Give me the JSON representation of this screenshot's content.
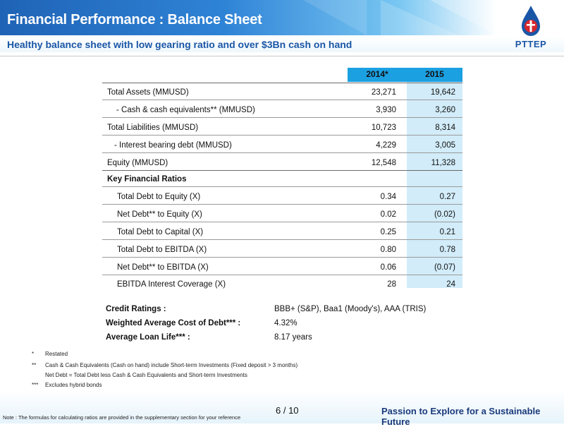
{
  "header": {
    "title": "Financial Performance : Balance Sheet",
    "subtitle": "Healthy balance sheet with low gearing ratio and over $3Bn cash on hand"
  },
  "logo": {
    "text": "PTTEP",
    "icon": "pttep-drop-logo"
  },
  "table": {
    "columns": [
      "2014*",
      "2015"
    ],
    "rows": [
      {
        "label": "Total Assets (MMUSD)",
        "v2014": "23,271",
        "v2015": "19,642"
      },
      {
        "label": "- Cash & cash equivalents** (MMUSD)",
        "v2014": "3,930",
        "v2015": "3,260"
      },
      {
        "label": "Total Liabilities (MMUSD)",
        "v2014": "10,723",
        "v2015": "8,314"
      },
      {
        "label": "-  Interest bearing debt (MMUSD)",
        "v2014": "4,229",
        "v2015": "3,005"
      },
      {
        "label": "Equity (MMUSD)",
        "v2014": "12,548",
        "v2015": "11,328"
      }
    ],
    "section_label": "Key Financial Ratios",
    "ratios": [
      {
        "label": "Total Debt to Equity (X)",
        "v2014": "0.34",
        "v2015": "0.27"
      },
      {
        "label": "Net Debt** to Equity (X)",
        "v2014": "0.02",
        "v2015": "(0.02)"
      },
      {
        "label": "Total Debt to Capital (X)",
        "v2014": "0.25",
        "v2015": "0.21"
      },
      {
        "label": "Total Debt to EBITDA (X)",
        "v2014": "0.80",
        "v2015": "0.78"
      },
      {
        "label": "Net Debt** to EBITDA (X)",
        "v2014": "0.06",
        "v2015": "(0.07)"
      },
      {
        "label": "EBITDA Interest Coverage (X)",
        "v2014": "28",
        "v2015": "24"
      }
    ]
  },
  "info": [
    {
      "label": "Credit Ratings :",
      "value": "BBB+ (S&P), Baa1 (Moody's),  AAA (TRIS)"
    },
    {
      "label": "Weighted Average Cost of Debt*** :",
      "value": "4.32%"
    },
    {
      "label": "Average Loan Life*** :",
      "value": "8.17 years"
    }
  ],
  "footnotes": [
    {
      "mark": "*",
      "text": "Restated"
    },
    {
      "mark": "**",
      "text": "Cash & Cash Equivalents (Cash on hand) include Short-term Investments (Fixed deposit > 3 months)"
    },
    {
      "mark": "",
      "text": "Net Debt = Total Debt less Cash & Cash Equivalents and Short-term Investments"
    },
    {
      "mark": "***",
      "text": "Excludes hybrid bonds"
    }
  ],
  "footer": {
    "note": "Note : The formulas for calculating ratios are provided in the supplementary section for your reference",
    "page": "6 / 10",
    "tagline": "Passion to Explore for a Sustainable Future"
  },
  "colors": {
    "header_blue": "#1ba0e2",
    "column_tint": "#d2ecf9",
    "title_blue": "#1a56a6"
  }
}
